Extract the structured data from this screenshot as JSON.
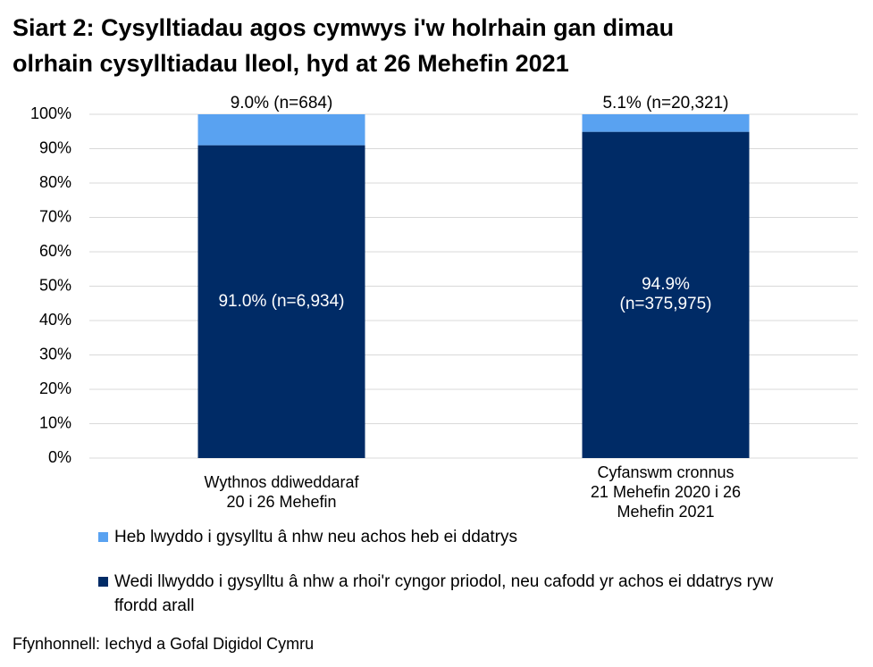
{
  "chart_data": {
    "type": "stacked_bar",
    "title": [
      "Siart 2: Cysylltiadau agos cymwys i'w holrhain gan dimau",
      "olrhain cysylltiadau lleol, hyd at 26 Mehefin 2021"
    ],
    "categories": [
      "Wythnos ddiweddaraf\n20 i 26 Mehefin",
      "Cyfanswm cronnus\n21 Mehefin 2020 i 26 Mehefin 2021"
    ],
    "series": [
      {
        "name": "Wedi llwyddo i gysylltu â nhw a rhoi'r cyngor priodol, neu cafodd yr achos ei ddatrys ryw ffordd arall",
        "color": "#002b66",
        "values": [
          91.0,
          94.9
        ],
        "value_labels": [
          "91.0% (n=6,934)",
          "94.9%\n(n=375,975)"
        ]
      },
      {
        "name": "Heb lwyddo i gysylltu â nhw neu achos heb ei ddatrys",
        "color": "#59a2f1",
        "values": [
          9.0,
          5.1
        ],
        "value_labels": [
          "9.0% (n=684)",
          "5.1% (n=20,321)"
        ]
      }
    ],
    "ylim": [
      0,
      100
    ],
    "yticks": [
      {
        "value": 0,
        "label": "0%"
      },
      {
        "value": 10,
        "label": "10%"
      },
      {
        "value": 20,
        "label": "20%"
      },
      {
        "value": 30,
        "label": "30%"
      },
      {
        "value": 40,
        "label": "40%"
      },
      {
        "value": 50,
        "label": "50%"
      },
      {
        "value": 60,
        "label": "60%"
      },
      {
        "value": 70,
        "label": "70%"
      },
      {
        "value": 80,
        "label": "80%"
      },
      {
        "value": 90,
        "label": "90%"
      },
      {
        "value": 100,
        "label": "100%"
      }
    ],
    "grid": true,
    "source": "Ffynhonnell: Iechyd a Gofal Digidol Cymru"
  }
}
